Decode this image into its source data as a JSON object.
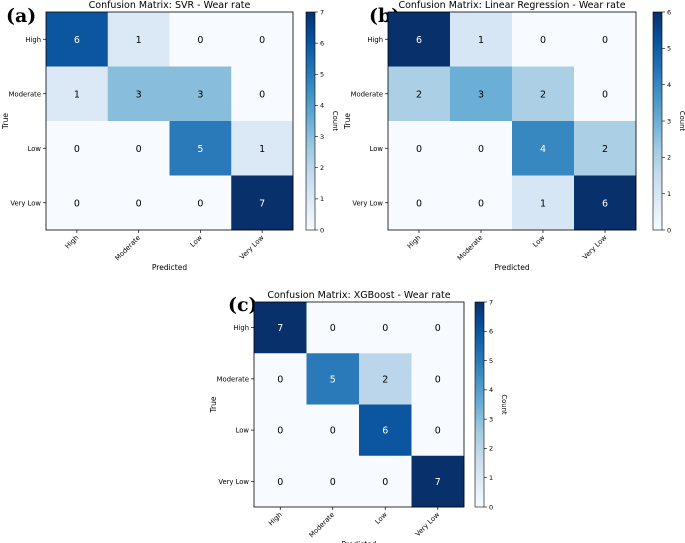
{
  "chart_data": [
    {
      "type": "heatmap",
      "panel": "(a)",
      "title": "Confusion Matrix: SVR - Wear rate",
      "xlabel": "Predicted",
      "ylabel": "True",
      "x_categories": [
        "High",
        "Moderate",
        "Low",
        "Very Low"
      ],
      "y_categories": [
        "High",
        "Moderate",
        "Low",
        "Very Low"
      ],
      "values": [
        [
          6,
          1,
          0,
          0
        ],
        [
          1,
          3,
          3,
          0
        ],
        [
          0,
          0,
          5,
          1
        ],
        [
          0,
          0,
          0,
          7
        ]
      ],
      "colorbar": {
        "label": "Count",
        "min": 0,
        "max": 7,
        "ticks": [
          "0",
          "1",
          "2",
          "3",
          "4",
          "5",
          "6",
          "7"
        ]
      },
      "colormap": "Blues"
    },
    {
      "type": "heatmap",
      "panel": "(b)",
      "title": "Confusion Matrix: Linear Regression - Wear rate",
      "xlabel": "Predicted",
      "ylabel": "True",
      "x_categories": [
        "High",
        "Moderate",
        "Low",
        "Very Low"
      ],
      "y_categories": [
        "High",
        "Moderate",
        "Low",
        "Very Low"
      ],
      "values": [
        [
          6,
          1,
          0,
          0
        ],
        [
          2,
          3,
          2,
          0
        ],
        [
          0,
          0,
          4,
          2
        ],
        [
          0,
          0,
          1,
          6
        ]
      ],
      "colorbar": {
        "label": "Count",
        "min": 0,
        "max": 6,
        "ticks": [
          "0",
          "1",
          "2",
          "3",
          "4",
          "5",
          "6"
        ]
      },
      "colormap": "Blues"
    },
    {
      "type": "heatmap",
      "panel": "(c)",
      "title": "Confusion Matrix: XGBoost - Wear rate",
      "xlabel": "Predicted",
      "ylabel": "True",
      "x_categories": [
        "High",
        "Moderate",
        "Low",
        "Very Low"
      ],
      "y_categories": [
        "High",
        "Moderate",
        "Low",
        "Very Low"
      ],
      "values": [
        [
          7,
          0,
          0,
          0
        ],
        [
          0,
          5,
          2,
          0
        ],
        [
          0,
          0,
          6,
          0
        ],
        [
          0,
          0,
          0,
          7
        ]
      ],
      "colorbar": {
        "label": "Count",
        "min": 0,
        "max": 7,
        "ticks": [
          "0",
          "1",
          "2",
          "3",
          "4",
          "5",
          "6",
          "7"
        ]
      },
      "colormap": "Blues"
    }
  ]
}
